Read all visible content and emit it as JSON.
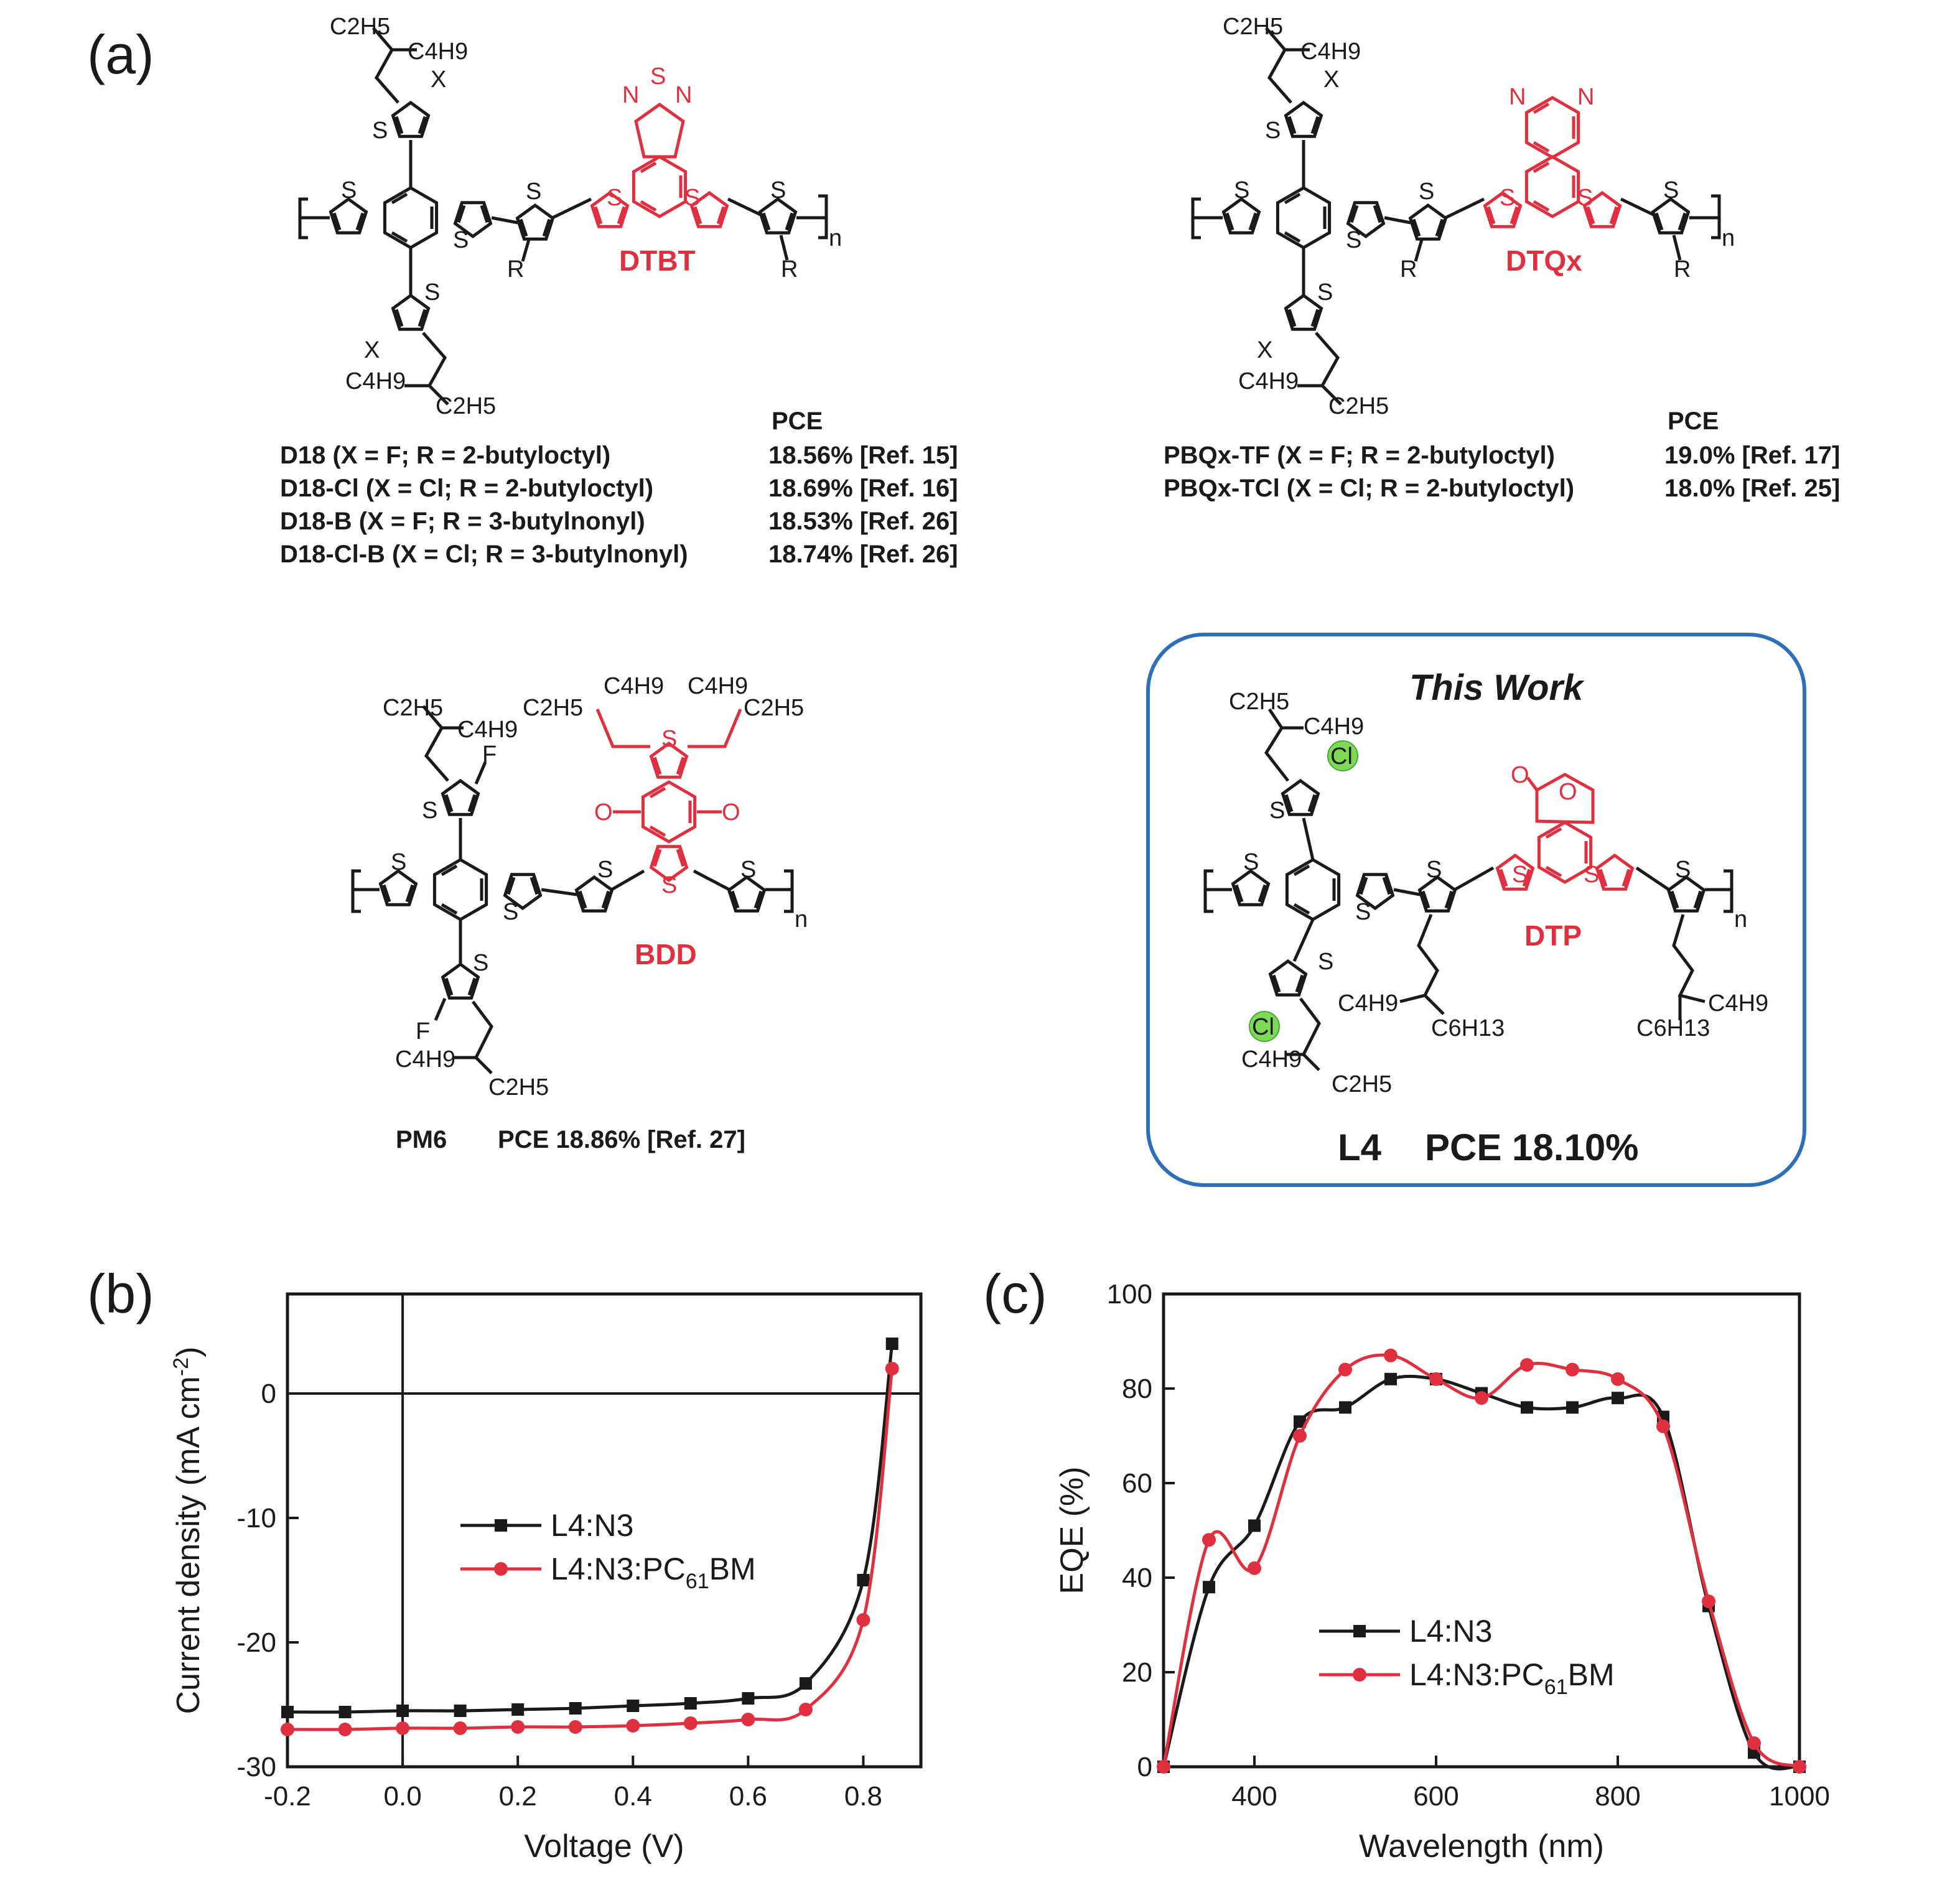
{
  "panel_labels": {
    "a": "(a)",
    "b": "(b)",
    "c": "(c)"
  },
  "colors": {
    "red": "#e03040",
    "black": "#1a1a1a",
    "box_blue": "#2f6fba",
    "cl_green": "#7ed957"
  },
  "atoms": {
    "S": "S",
    "N": "N",
    "O": "O",
    "F": "F",
    "X": "X",
    "R": "R",
    "Cl": "Cl",
    "n": "n"
  },
  "groups": {
    "C2H5": "C2H5",
    "C4H9": "C4H9",
    "C6H13": "C6H13"
  },
  "structures": {
    "dtbt": {
      "unit_label": "DTBT",
      "pce_header": "PCE",
      "rows": [
        {
          "name": "D18 (X = F; R = 2-butyloctyl)",
          "pce": "18.56% [Ref. 15]"
        },
        {
          "name": "D18-Cl (X = Cl; R = 2-butyloctyl)",
          "pce": "18.69% [Ref. 16]"
        },
        {
          "name": "D18-B (X = F; R = 3-butylnonyl)",
          "pce": "18.53% [Ref. 26]"
        },
        {
          "name": "D18-Cl-B (X = Cl; R = 3-butylnonyl)",
          "pce": "18.74% [Ref. 26]"
        }
      ]
    },
    "dtqx": {
      "unit_label": "DTQx",
      "pce_header": "PCE",
      "rows": [
        {
          "name": "PBQx-TF (X = F; R = 2-butyloctyl)",
          "pce": "19.0% [Ref. 17]"
        },
        {
          "name": "PBQx-TCl (X = Cl; R = 2-butyloctyl)",
          "pce": "18.0% [Ref. 25]"
        }
      ]
    },
    "bdd": {
      "unit_label": "BDD",
      "caption_name": "PM6",
      "caption_pce": "PCE 18.86% [Ref. 27]"
    },
    "dtp": {
      "unit_label": "DTP",
      "box_title": "This Work",
      "caption_name": "L4",
      "caption_pce": "PCE 18.10%"
    }
  },
  "chart_data": [
    {
      "panel": "(b)",
      "type": "line",
      "xlabel": "Voltage (V)",
      "ylabel": "Current density (mA cm",
      "ylabel_sup": "-2",
      "ylabel_close": ")",
      "xlim": [
        -0.2,
        0.9
      ],
      "ylim": [
        -30,
        8
      ],
      "xticks": [
        "-0.2",
        "0.0",
        "0.2",
        "0.4",
        "0.6",
        "0.8"
      ],
      "yticks": [
        "0",
        "-10",
        "-20",
        "-30"
      ],
      "zero_lines": true,
      "legend_position": "center",
      "series": [
        {
          "name": "L4:N3",
          "color": "#1a1a1a",
          "marker": "square",
          "x": [
            -0.2,
            -0.1,
            0.0,
            0.1,
            0.2,
            0.3,
            0.4,
            0.5,
            0.6,
            0.7,
            0.8,
            0.85
          ],
          "y": [
            -25.6,
            -25.6,
            -25.5,
            -25.5,
            -25.4,
            -25.3,
            -25.1,
            -24.9,
            -24.5,
            -23.3,
            -15.0,
            4.0
          ]
        },
        {
          "name": "L4:N3:PC",
          "name_sub": "61",
          "name_tail": "BM",
          "color": "#e03040",
          "marker": "circle",
          "x": [
            -0.2,
            -0.1,
            0.0,
            0.1,
            0.2,
            0.3,
            0.4,
            0.5,
            0.6,
            0.7,
            0.8,
            0.85
          ],
          "y": [
            -27.0,
            -27.0,
            -26.9,
            -26.9,
            -26.8,
            -26.8,
            -26.7,
            -26.5,
            -26.2,
            -25.4,
            -18.2,
            2.0
          ]
        }
      ]
    },
    {
      "panel": "(c)",
      "type": "line",
      "xlabel": "Wavelength (nm)",
      "ylabel": "EQE (%)",
      "xlim": [
        300,
        1000
      ],
      "ylim": [
        0,
        100
      ],
      "xticks": [
        "400",
        "600",
        "800",
        "1000"
      ],
      "yticks": [
        "0",
        "20",
        "40",
        "60",
        "80",
        "100"
      ],
      "legend_position": "bottom-left",
      "series": [
        {
          "name": "L4:N3",
          "color": "#1a1a1a",
          "marker": "square",
          "x": [
            300,
            350,
            400,
            450,
            500,
            550,
            600,
            650,
            700,
            750,
            800,
            850,
            900,
            950,
            1000
          ],
          "y": [
            0,
            38,
            51,
            73,
            76,
            82,
            82,
            79,
            76,
            76,
            78,
            74,
            34,
            3,
            0
          ]
        },
        {
          "name": "L4:N3:PC",
          "name_sub": "61",
          "name_tail": "BM",
          "color": "#e03040",
          "marker": "circle",
          "x": [
            300,
            350,
            400,
            450,
            500,
            550,
            600,
            650,
            700,
            750,
            800,
            850,
            900,
            950,
            1000
          ],
          "y": [
            0,
            48,
            42,
            70,
            84,
            87,
            82,
            78,
            85,
            84,
            82,
            72,
            35,
            5,
            0
          ]
        }
      ]
    }
  ]
}
